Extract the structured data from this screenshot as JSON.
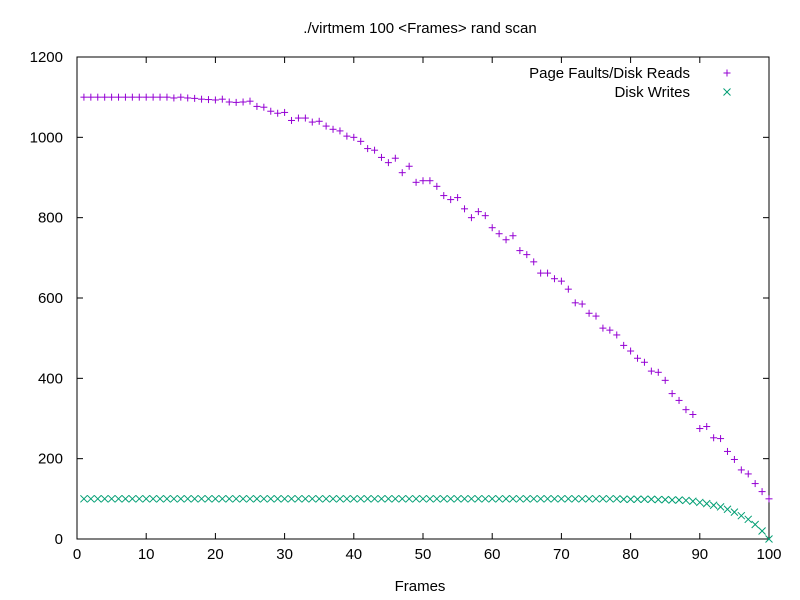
{
  "chart_data": {
    "type": "scatter",
    "title": "./virtmem 100 <Frames> rand scan",
    "xlabel": "Frames",
    "ylabel": "",
    "xlim": [
      0,
      100
    ],
    "ylim": [
      0,
      1200
    ],
    "x_ticks": [
      "0",
      "10",
      "20",
      "30",
      "40",
      "50",
      "60",
      "70",
      "80",
      "90",
      "100"
    ],
    "y_ticks": [
      "0",
      "200",
      "400",
      "600",
      "800",
      "1000",
      "1200"
    ],
    "grid": false,
    "legend_position": "top-right",
    "x": [
      1,
      2,
      3,
      4,
      5,
      6,
      7,
      8,
      9,
      10,
      11,
      12,
      13,
      14,
      15,
      16,
      17,
      18,
      19,
      20,
      21,
      22,
      23,
      24,
      25,
      26,
      27,
      28,
      29,
      30,
      31,
      32,
      33,
      34,
      35,
      36,
      37,
      38,
      39,
      40,
      41,
      42,
      43,
      44,
      45,
      46,
      47,
      48,
      49,
      50,
      51,
      52,
      53,
      54,
      55,
      56,
      57,
      58,
      59,
      60,
      61,
      62,
      63,
      64,
      65,
      66,
      67,
      68,
      69,
      70,
      71,
      72,
      73,
      74,
      75,
      76,
      77,
      78,
      79,
      80,
      81,
      82,
      83,
      84,
      85,
      86,
      87,
      88,
      89,
      90,
      91,
      92,
      93,
      94,
      95,
      96,
      97,
      98,
      99,
      100
    ],
    "series": [
      {
        "name": "Page Faults/Disk Reads",
        "marker": "plus",
        "color": "#9400d3",
        "values": [
          1100,
          1100,
          1100,
          1100,
          1100,
          1100,
          1100,
          1100,
          1100,
          1100,
          1100,
          1100,
          1100,
          1098,
          1100,
          1098,
          1097,
          1095,
          1094,
          1093,
          1095,
          1088,
          1087,
          1088,
          1090,
          1077,
          1075,
          1065,
          1060,
          1062,
          1042,
          1048,
          1048,
          1038,
          1040,
          1028,
          1020,
          1016,
          1003,
          1000,
          990,
          972,
          968,
          950,
          937,
          948,
          912,
          928,
          888,
          892,
          892,
          878,
          855,
          845,
          850,
          822,
          800,
          815,
          805,
          775,
          760,
          745,
          755,
          718,
          708,
          690,
          662,
          662,
          648,
          642,
          622,
          588,
          585,
          562,
          555,
          525,
          520,
          508,
          482,
          468,
          450,
          440,
          418,
          415,
          395,
          362,
          345,
          322,
          310,
          275,
          280,
          252,
          250,
          218,
          198,
          172,
          162,
          138,
          118,
          100
        ]
      },
      {
        "name": "Disk Writes",
        "marker": "x",
        "color": "#009e73",
        "values": [
          100,
          100,
          100,
          100,
          100,
          100,
          100,
          100,
          100,
          100,
          100,
          100,
          100,
          100,
          100,
          100,
          100,
          100,
          100,
          100,
          100,
          100,
          100,
          100,
          100,
          100,
          100,
          100,
          100,
          100,
          100,
          100,
          100,
          100,
          100,
          100,
          100,
          100,
          100,
          100,
          100,
          100,
          100,
          100,
          100,
          100,
          100,
          100,
          100,
          100,
          100,
          100,
          100,
          100,
          100,
          100,
          100,
          100,
          100,
          100,
          100,
          100,
          100,
          100,
          100,
          100,
          100,
          100,
          100,
          100,
          100,
          100,
          100,
          100,
          100,
          100,
          100,
          100,
          99,
          99,
          99,
          99,
          99,
          98,
          98,
          97,
          97,
          96,
          94,
          91,
          88,
          84,
          80,
          74,
          67,
          58,
          49,
          36,
          20,
          0
        ]
      }
    ]
  }
}
